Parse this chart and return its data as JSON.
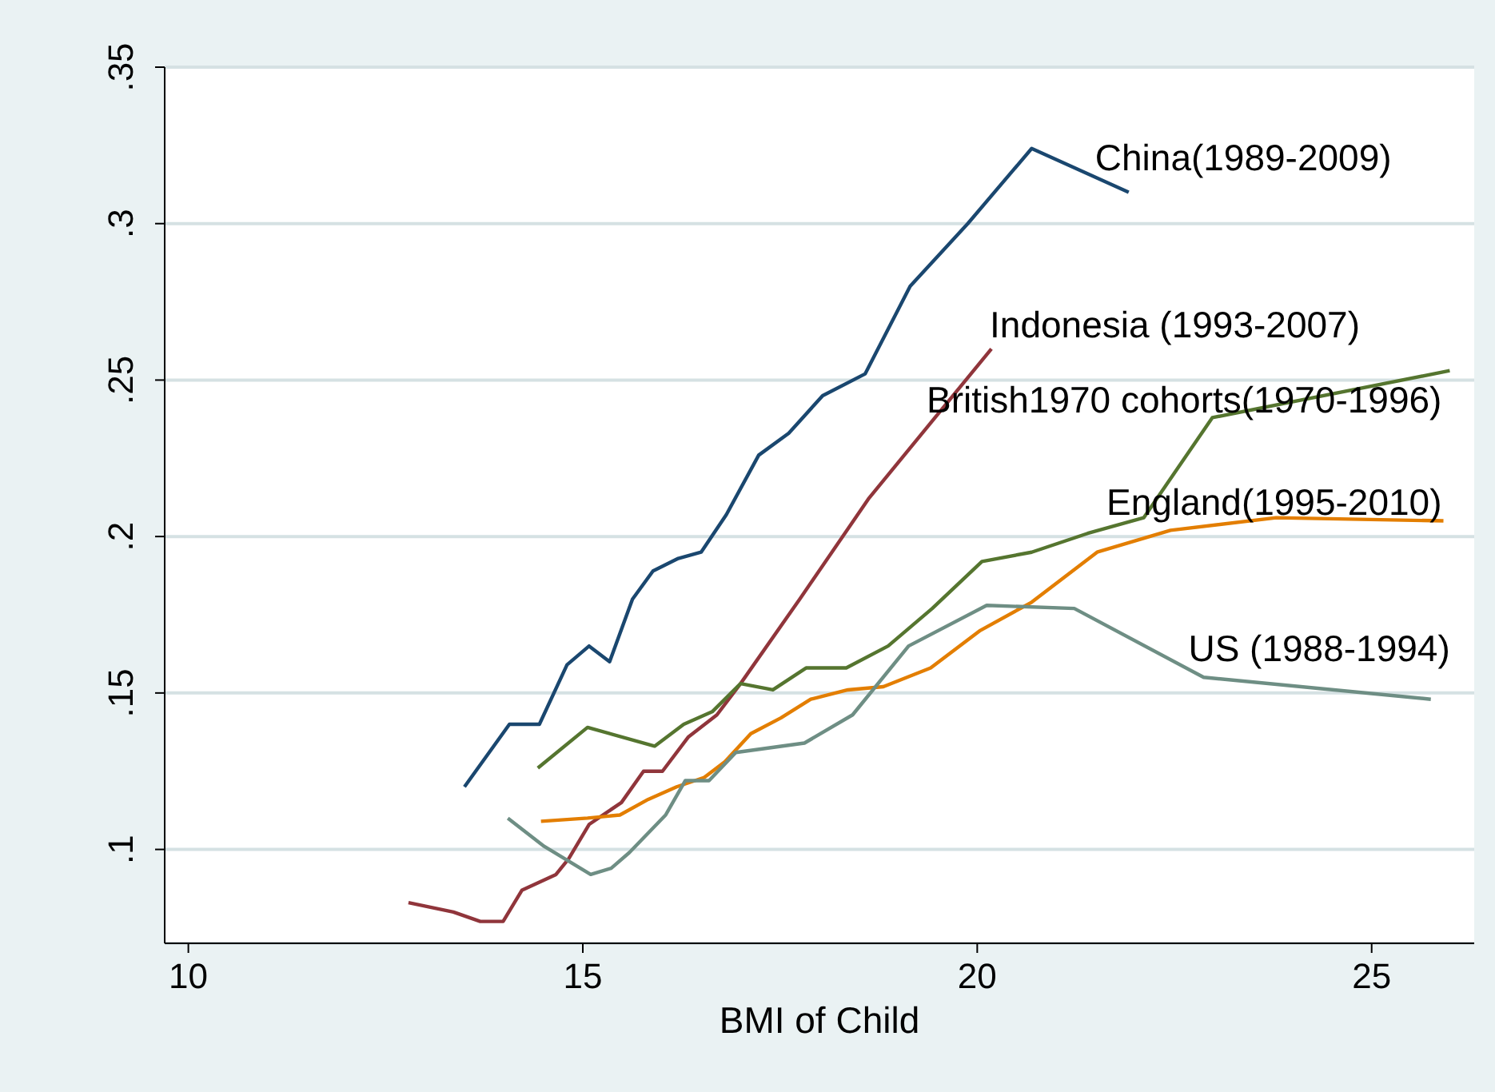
{
  "chart_data": {
    "type": "line",
    "xlabel": "BMI of Child",
    "xlim": [
      9.7,
      26.3
    ],
    "xticks": [
      10,
      15,
      20,
      25
    ],
    "ylim": [
      0.07,
      0.35
    ],
    "yticks": [
      {
        "value": 0.1,
        "label": ".1"
      },
      {
        "value": 0.15,
        "label": ".15"
      },
      {
        "value": 0.2,
        "label": ".2"
      },
      {
        "value": 0.25,
        "label": ".25"
      },
      {
        "value": 0.3,
        "label": ".3"
      },
      {
        "value": 0.35,
        "label": ".35"
      }
    ],
    "grid": "y",
    "legend": false,
    "line_style": "solid",
    "marker": "none",
    "series": [
      {
        "name": "China(1989-2009)",
        "color": "#1a476f",
        "x": [
          13.5,
          14.07,
          14.45,
          14.8,
          15.08,
          15.34,
          15.63,
          15.89,
          16.21,
          16.5,
          16.82,
          17.23,
          17.61,
          18.04,
          18.58,
          19.15,
          19.88,
          20.69,
          21.92
        ],
        "values": [
          0.12,
          0.14,
          0.14,
          0.159,
          0.165,
          0.16,
          0.18,
          0.189,
          0.193,
          0.195,
          0.207,
          0.226,
          0.233,
          0.245,
          0.252,
          0.28,
          0.3,
          0.324,
          0.31
        ]
      },
      {
        "name": "Indonesia (1993-2007)",
        "color": "#90353b",
        "x": [
          12.79,
          13.36,
          13.7,
          13.99,
          14.23,
          14.66,
          14.82,
          15.08,
          15.49,
          15.77,
          16.01,
          16.34,
          16.7,
          17.0,
          17.75,
          18.62,
          20.18
        ],
        "values": [
          0.083,
          0.08,
          0.077,
          0.077,
          0.087,
          0.092,
          0.097,
          0.108,
          0.115,
          0.125,
          0.125,
          0.136,
          0.143,
          0.153,
          0.18,
          0.212,
          0.26
        ]
      },
      {
        "name": "British1970 cohorts(1970-1996)",
        "color": "#55752f",
        "x": [
          14.43,
          15.06,
          15.91,
          16.28,
          16.64,
          17.0,
          17.41,
          17.83,
          18.34,
          18.87,
          19.43,
          20.06,
          20.69,
          21.4,
          22.11,
          22.98,
          25.99
        ],
        "values": [
          0.126,
          0.139,
          0.133,
          0.14,
          0.144,
          0.153,
          0.151,
          0.158,
          0.158,
          0.165,
          0.177,
          0.192,
          0.195,
          0.201,
          0.206,
          0.238,
          0.253
        ]
      },
      {
        "name": "England(1995-2010)",
        "color": "#e37e00",
        "x": [
          14.47,
          15.06,
          15.47,
          15.83,
          16.19,
          16.54,
          16.8,
          17.13,
          17.51,
          17.89,
          18.36,
          18.81,
          19.41,
          20.04,
          20.69,
          21.52,
          22.45,
          23.79,
          25.91
        ],
        "values": [
          0.109,
          0.11,
          0.111,
          0.116,
          0.12,
          0.123,
          0.128,
          0.137,
          0.142,
          0.148,
          0.151,
          0.152,
          0.158,
          0.17,
          0.179,
          0.195,
          0.202,
          0.206,
          0.205
        ]
      },
      {
        "name": "US (1988-1994)",
        "color": "#6e8e84",
        "x": [
          14.05,
          14.51,
          15.1,
          15.36,
          15.59,
          16.05,
          16.3,
          16.6,
          16.94,
          17.81,
          18.42,
          19.13,
          20.12,
          21.23,
          22.87,
          25.75
        ],
        "values": [
          0.11,
          0.101,
          0.092,
          0.094,
          0.099,
          0.111,
          0.122,
          0.122,
          0.131,
          0.134,
          0.143,
          0.165,
          0.178,
          0.177,
          0.155,
          0.148
        ]
      }
    ]
  }
}
